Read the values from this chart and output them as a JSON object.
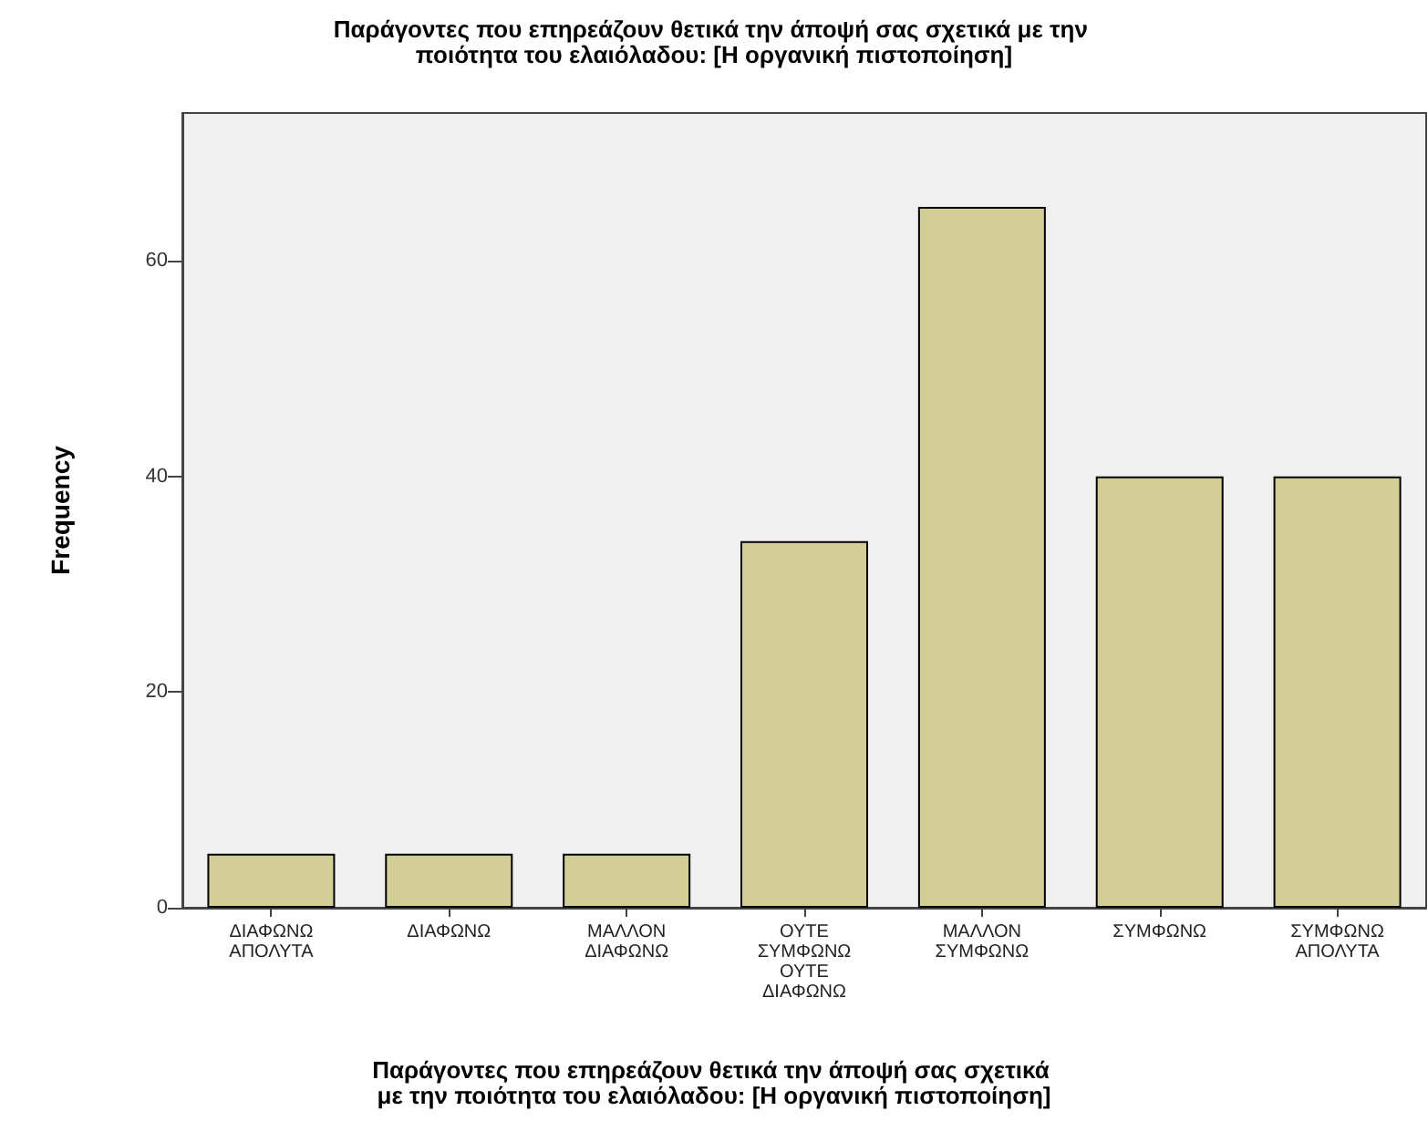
{
  "chart_data": {
    "type": "bar",
    "title": "Παράγοντες που επηρεάζουν θετικά την άποψή σας σχετικά με την ποιότητα του ελαιόλαδου: [Η οργανική πιστοποίηση]",
    "xlabel": "Παράγοντες που επηρεάζουν θετικά την άποψή σας σχετικά με την ποιότητα του ελαιόλαδου: [Η οργανική πιστοποίηση]",
    "ylabel": "Frequency",
    "categories": [
      "ΔΙΑΦΩΝΩ ΑΠΟΛΥΤΑ",
      "ΔΙΑΦΩΝΩ",
      "ΜΑΛΛΟΝ ΔΙΑΦΩΝΩ",
      "ΟΥΤΕ ΣΥΜΦΩΝΩ ΟΥΤΕ ΔΙΑΦΩΝΩ",
      "ΜΑΛΛΟΝ ΣΥΜΦΩΝΩ",
      "ΣΥΜΦΩΝΩ",
      "ΣΥΜΦΩΝΩ ΑΠΟΛΥΤΑ"
    ],
    "values": [
      5,
      5,
      5,
      34,
      65,
      40,
      40
    ],
    "color": "#d3ce97",
    "ylim": [
      0,
      73.7
    ],
    "yticks": [
      0,
      20,
      40,
      60
    ],
    "grid": false
  }
}
